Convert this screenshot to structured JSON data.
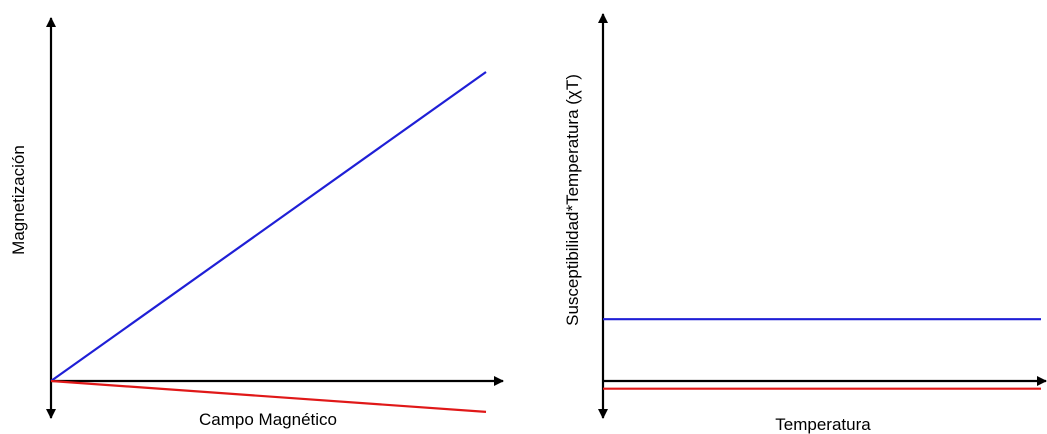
{
  "colors": {
    "axis": "#000000",
    "series_blue": "#1f1fd6",
    "series_red": "#e01818"
  },
  "chart_data": [
    {
      "type": "line",
      "title": "",
      "xlabel": "Campo Magnético",
      "ylabel": "Magnetización",
      "xlim": [
        0,
        1.1
      ],
      "ylim": [
        -0.14,
        1.1
      ],
      "grid": false,
      "legend": "none",
      "series": [
        {
          "color": "#1f1fd6",
          "x": [
            0,
            1
          ],
          "y": [
            0,
            1
          ]
        },
        {
          "color": "#e01818",
          "x": [
            0,
            1
          ],
          "y": [
            0,
            -0.1
          ]
        }
      ]
    },
    {
      "type": "line",
      "title": "",
      "xlabel": "Temperatura",
      "ylabel": "Susceptibilidad*Temperatura (χT)",
      "xlim": [
        0,
        1
      ],
      "ylim": [
        -0.14,
        1.1
      ],
      "grid": false,
      "legend": "none",
      "series": [
        {
          "color": "#1f1fd6",
          "x": [
            0,
            1
          ],
          "y": [
            0.2,
            0.2
          ]
        },
        {
          "color": "#e01818",
          "x": [
            0,
            1
          ],
          "y": [
            -0.025,
            -0.025
          ]
        }
      ]
    }
  ]
}
